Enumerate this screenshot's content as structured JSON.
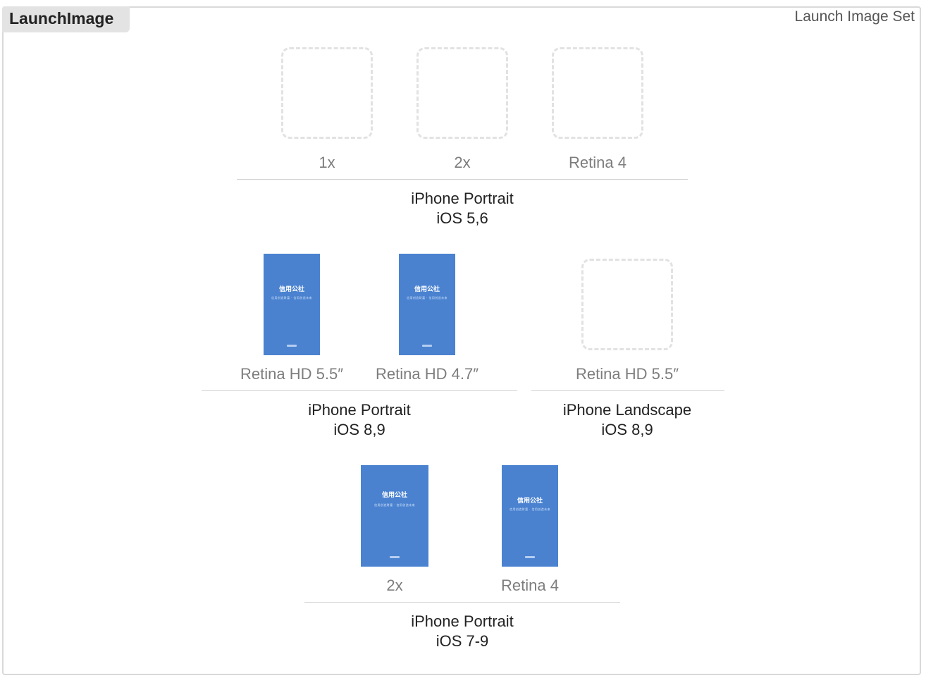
{
  "header": {
    "set_name": "LaunchImage",
    "set_type": "Launch Image Set"
  },
  "thumbnail": {
    "app_name": "信用公社",
    "tagline": "信用创造财富 · 信用创造未来",
    "fill_color": "#4a82d0"
  },
  "groups": [
    {
      "device": "iPhone Portrait",
      "os": "iOS 5,6",
      "slots": [
        {
          "label": "1x",
          "filled": false
        },
        {
          "label": "2x",
          "filled": false
        },
        {
          "label": "Retina 4",
          "filled": false
        }
      ]
    },
    {
      "device": "iPhone Portrait",
      "os": "iOS 8,9",
      "slots": [
        {
          "label": "Retina HD 5.5″",
          "filled": true
        },
        {
          "label": "Retina HD 4.7″",
          "filled": true
        }
      ]
    },
    {
      "device": "iPhone Landscape",
      "os": "iOS 8,9",
      "slots": [
        {
          "label": "Retina HD 5.5″",
          "filled": false
        }
      ]
    },
    {
      "device": "iPhone Portrait",
      "os": "iOS 7-9",
      "slots": [
        {
          "label": "2x",
          "filled": true
        },
        {
          "label": "Retina 4",
          "filled": true
        }
      ]
    }
  ]
}
